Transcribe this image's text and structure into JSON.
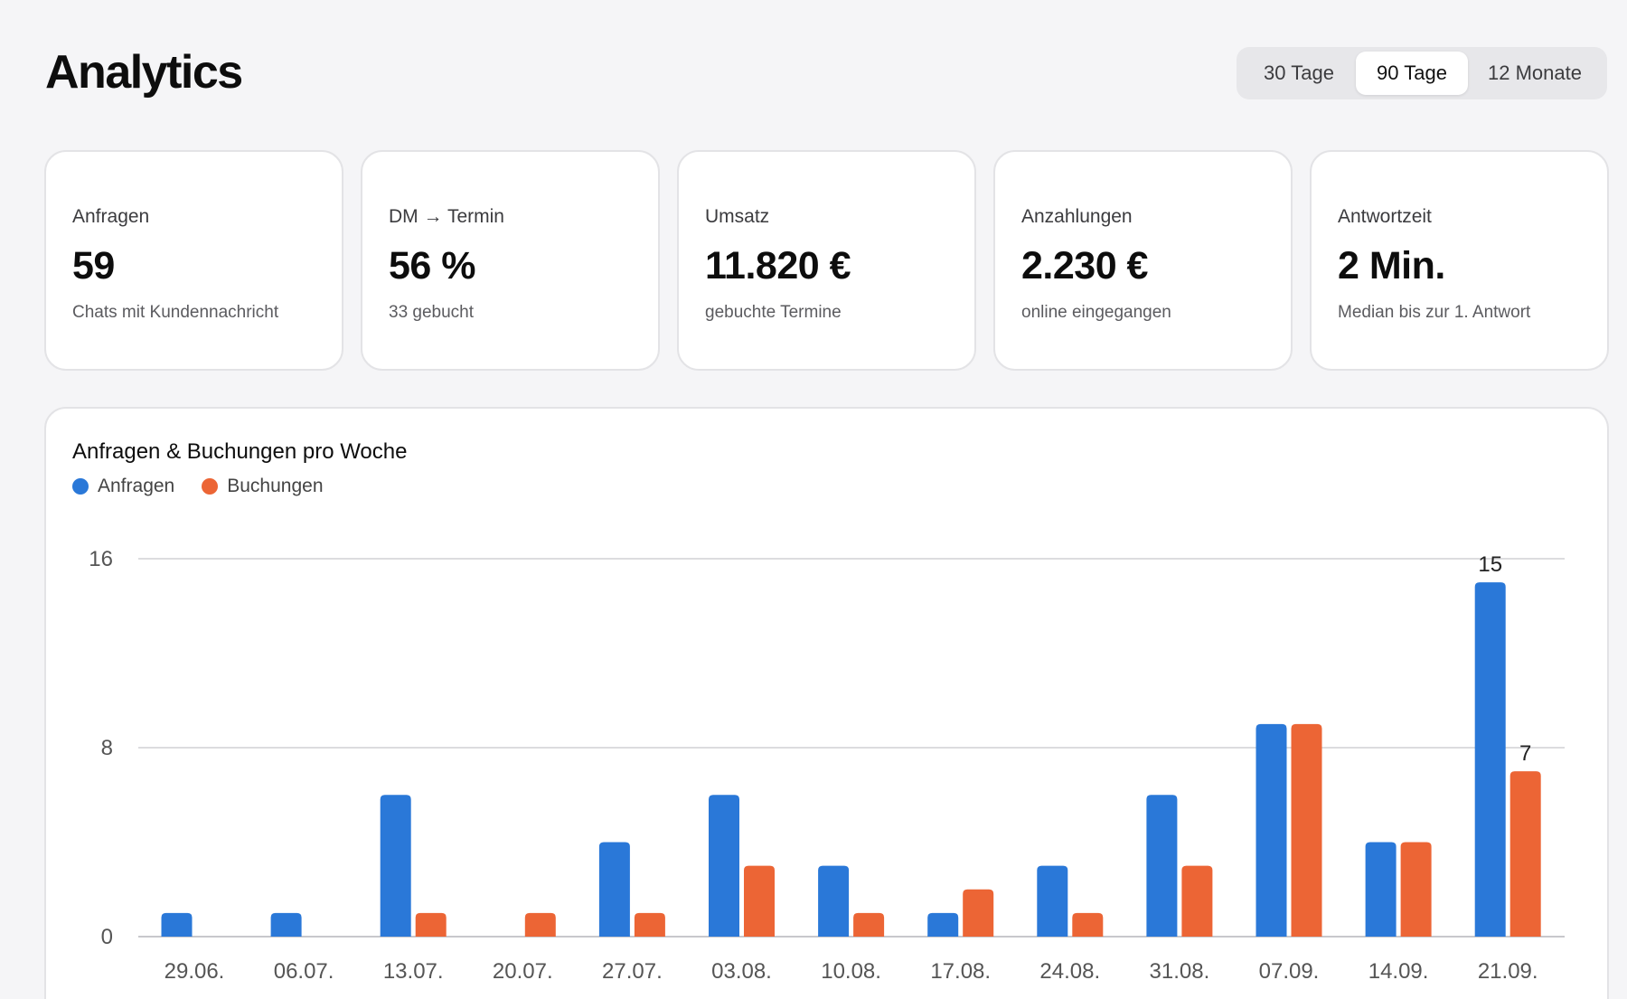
{
  "page": {
    "title": "Analytics"
  },
  "range": {
    "options": [
      "30 Tage",
      "90 Tage",
      "12 Monate"
    ],
    "active": "90 Tage"
  },
  "kpis": [
    {
      "label": "Anfragen",
      "value": "59",
      "sub": "Chats mit Kundennachricht"
    },
    {
      "label": "DM → Termin",
      "value": "56 %",
      "sub": "33 gebucht"
    },
    {
      "label": "Umsatz",
      "value": "11.820 €",
      "sub": "gebuchte Termine"
    },
    {
      "label": "Anzahlungen",
      "value": "2.230 €",
      "sub": "online eingegangen"
    },
    {
      "label": "Antwortzeit",
      "value": "2 Min.",
      "sub": "Median bis zur 1. Antwort"
    }
  ],
  "chart": {
    "title": "Anfragen & Buchungen pro Woche",
    "legend": [
      "Anfragen",
      "Buchungen"
    ]
  },
  "colors": {
    "anfragen": "#2a78d8",
    "buchungen": "#ec6535",
    "grid": "#dcdcdf",
    "axis": "#c8c8cc"
  },
  "chart_data": {
    "type": "bar",
    "title": "Anfragen & Buchungen pro Woche",
    "xlabel": "",
    "ylabel": "",
    "categories": [
      "29.06.",
      "06.07.",
      "13.07.",
      "20.07.",
      "27.07.",
      "03.08.",
      "10.08.",
      "17.08.",
      "24.08.",
      "31.08.",
      "07.09.",
      "14.09.",
      "21.09."
    ],
    "series": [
      {
        "name": "Anfragen",
        "values": [
          1,
          1,
          6,
          0,
          4,
          6,
          3,
          1,
          3,
          6,
          9,
          4,
          15
        ]
      },
      {
        "name": "Buchungen",
        "values": [
          0,
          0,
          1,
          1,
          1,
          3,
          1,
          2,
          1,
          3,
          9,
          4,
          7
        ]
      }
    ],
    "ylim": [
      0,
      16
    ],
    "yticks": [
      0,
      8,
      16
    ],
    "data_labels": [
      {
        "series": "Anfragen",
        "category": "21.09.",
        "text": "15"
      },
      {
        "series": "Buchungen",
        "category": "21.09.",
        "text": "7"
      }
    ],
    "grid": true,
    "legend_position": "top-left"
  }
}
